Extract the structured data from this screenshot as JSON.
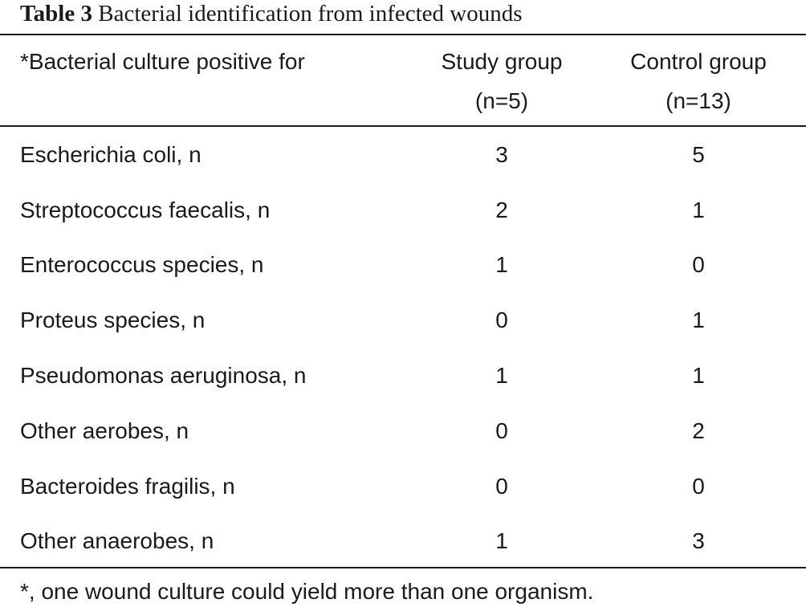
{
  "caption": {
    "label": "Table 3",
    "title": "Bacterial identification from infected wounds"
  },
  "table": {
    "headers": {
      "name": "*Bacterial culture positive for",
      "study_line1": "Study group",
      "study_line2": "(n=5)",
      "control_line1": "Control group",
      "control_line2": "(n=13)"
    },
    "rows": [
      {
        "name": "Escherichia coli, n",
        "study": "3",
        "control": "5"
      },
      {
        "name": "Streptococcus faecalis, n",
        "study": "2",
        "control": "1"
      },
      {
        "name": "Enterococcus species, n",
        "study": "1",
        "control": "0"
      },
      {
        "name": "Proteus species, n",
        "study": "0",
        "control": "1"
      },
      {
        "name": "Pseudomonas aeruginosa, n",
        "study": "1",
        "control": "1"
      },
      {
        "name": "Other aerobes, n",
        "study": "0",
        "control": "2"
      },
      {
        "name": "Bacteroides fragilis, n",
        "study": "0",
        "control": "0"
      },
      {
        "name": "Other anaerobes, n",
        "study": "1",
        "control": "3"
      }
    ]
  },
  "footnote": "*, one wound culture could yield more than one organism."
}
